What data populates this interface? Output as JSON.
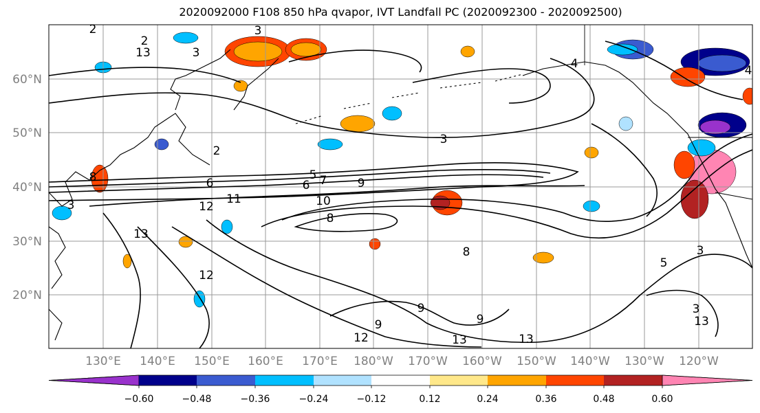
{
  "title": "2020092000 F108 850 hPa qvapor, IVT Landfall PC (2020092300 - 2020092500)",
  "latitude_labels": [
    "60°N",
    "50°N",
    "40°N",
    "30°N",
    "20°N"
  ],
  "longitude_labels": [
    "130°E",
    "140°E",
    "150°E",
    "160°E",
    "170°E",
    "180°W",
    "170°W",
    "160°W",
    "150°W",
    "140°W",
    "130°W",
    "120°W"
  ],
  "colorbar": {
    "tick_labels": [
      "-0.60",
      "-0.48",
      "-0.36",
      "-0.24",
      "-0.12",
      "0.12",
      "0.24",
      "0.36",
      "0.48",
      "0.60"
    ],
    "colors": [
      "#9932cc",
      "#00008b",
      "#3a5bd0",
      "#00bfff",
      "#b0e2ff",
      "#ffffff",
      "#ffe88a",
      "#ffa500",
      "#ff4500",
      "#b22222",
      "#ff85b3"
    ]
  },
  "contour_labels": [
    "2",
    "3",
    "2",
    "3",
    "4",
    "6",
    "3",
    "2",
    "5",
    "6",
    "7",
    "8",
    "9",
    "11",
    "12",
    "10",
    "8",
    "13",
    "12",
    "8",
    "9",
    "9",
    "9",
    "12",
    "13",
    "13",
    "3",
    "5",
    "13",
    "3",
    "13",
    "4",
    "3"
  ]
}
